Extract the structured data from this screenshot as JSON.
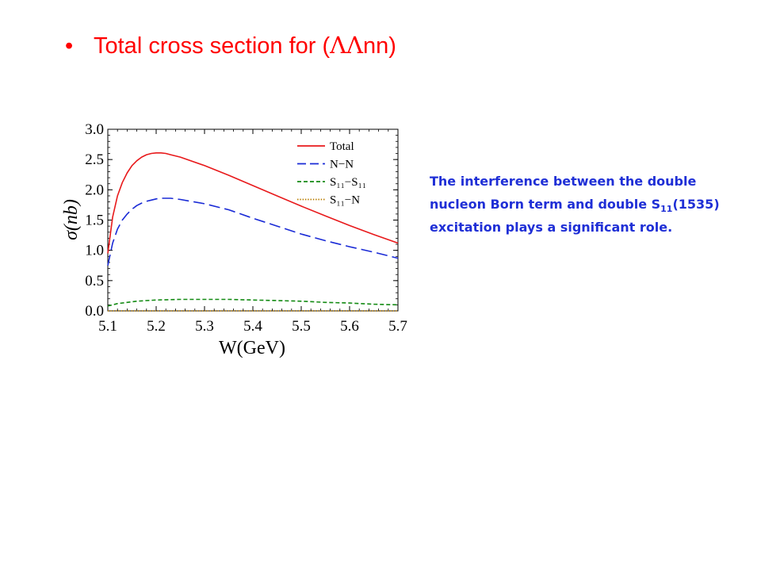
{
  "slide": {
    "bullet": "•",
    "title_prefix": "Total cross section for (",
    "title_greek": "ΛΛ",
    "title_suffix": "nn)",
    "note_part1": "The interference between the double nucleon Born term and double S",
    "note_sub": "11",
    "note_part2": "(1535) excitation plays a significant role."
  },
  "colors": {
    "title": "#ff0000",
    "note": "#1f2fd6",
    "total": "#e8191b",
    "nn": "#1a2bd6",
    "s11s11": "#138a13",
    "s11n": "#b87d00"
  },
  "chart_data": {
    "type": "line",
    "title": "",
    "xlabel": "W(GeV)",
    "ylabel": "σ(nb)",
    "xlim": [
      5.1,
      5.7
    ],
    "ylim": [
      0.0,
      3.0
    ],
    "xticks": [
      5.1,
      5.2,
      5.3,
      5.4,
      5.5,
      5.6,
      5.7
    ],
    "yticks": [
      0.0,
      0.5,
      1.0,
      1.5,
      2.0,
      2.5,
      3.0
    ],
    "xtick_labels": [
      "5.1",
      "5.2",
      "5.3",
      "5.4",
      "5.5",
      "5.6",
      "5.7"
    ],
    "ytick_labels": [
      "0.0",
      "0.5",
      "1.0",
      "1.5",
      "2.0",
      "2.5",
      "3.0"
    ],
    "grid": false,
    "legend_position": "top-right",
    "series": [
      {
        "name": "Total",
        "style": "solid",
        "color": "#e8191b",
        "x": [
          5.1,
          5.11,
          5.12,
          5.13,
          5.14,
          5.15,
          5.16,
          5.17,
          5.18,
          5.19,
          5.2,
          5.21,
          5.22,
          5.23,
          5.25,
          5.3,
          5.35,
          5.4,
          5.45,
          5.5,
          5.55,
          5.6,
          5.65,
          5.7
        ],
        "y": [
          0.95,
          1.55,
          1.9,
          2.12,
          2.28,
          2.4,
          2.48,
          2.54,
          2.58,
          2.6,
          2.61,
          2.61,
          2.6,
          2.58,
          2.54,
          2.4,
          2.24,
          2.07,
          1.9,
          1.73,
          1.57,
          1.41,
          1.26,
          1.12
        ]
      },
      {
        "name": "N−N",
        "style": "dashed",
        "color": "#1a2bd6",
        "x": [
          5.1,
          5.11,
          5.12,
          5.13,
          5.14,
          5.15,
          5.16,
          5.17,
          5.18,
          5.19,
          5.2,
          5.21,
          5.22,
          5.23,
          5.25,
          5.3,
          5.35,
          5.4,
          5.45,
          5.5,
          5.55,
          5.6,
          5.65,
          5.7
        ],
        "y": [
          0.75,
          1.12,
          1.35,
          1.5,
          1.6,
          1.68,
          1.74,
          1.78,
          1.81,
          1.83,
          1.85,
          1.86,
          1.86,
          1.86,
          1.84,
          1.77,
          1.67,
          1.53,
          1.4,
          1.27,
          1.16,
          1.06,
          0.97,
          0.87
        ]
      },
      {
        "name": "S₁₁−S₁₁",
        "style": "short-dashed",
        "color": "#138a13",
        "x": [
          5.1,
          5.12,
          5.14,
          5.16,
          5.18,
          5.2,
          5.25,
          5.3,
          5.35,
          5.4,
          5.45,
          5.5,
          5.55,
          5.6,
          5.65,
          5.7
        ],
        "y": [
          0.08,
          0.12,
          0.14,
          0.16,
          0.17,
          0.18,
          0.19,
          0.19,
          0.19,
          0.18,
          0.17,
          0.16,
          0.14,
          0.13,
          0.11,
          0.1
        ]
      },
      {
        "name": "S₁₁−N",
        "style": "dotted",
        "color": "#b87d00",
        "x": [
          5.1,
          5.2,
          5.3,
          5.4,
          5.5,
          5.6,
          5.7
        ],
        "y": [
          0.0,
          0.0,
          0.0,
          0.0,
          0.0,
          0.0,
          0.0
        ]
      }
    ]
  }
}
